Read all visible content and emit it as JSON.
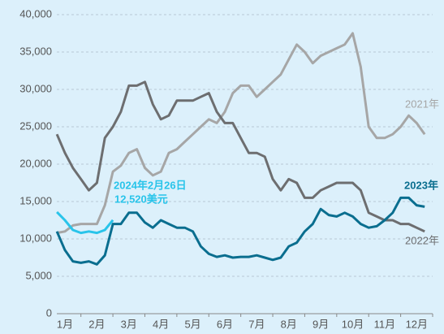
{
  "chart_data": {
    "type": "line",
    "categories": [
      "1月",
      "2月",
      "3月",
      "4月",
      "5月",
      "6月",
      "7月",
      "8月",
      "9月",
      "10月",
      "11月",
      "12月"
    ],
    "xlim": [
      0,
      12
    ],
    "x": [
      0.25,
      0.5,
      0.75,
      1,
      1.25,
      1.5,
      1.75,
      2,
      2.25,
      2.5,
      2.75,
      3,
      3.25,
      3.5,
      3.75,
      4,
      4.25,
      4.5,
      4.75,
      5,
      5.25,
      5.5,
      5.75,
      6,
      6.25,
      6.5,
      6.75,
      7,
      7.25,
      7.5,
      7.75,
      8,
      8.25,
      8.5,
      8.75,
      9,
      9.25,
      9.5,
      9.75,
      10,
      10.25,
      10.5,
      10.75,
      11,
      11.25,
      11.5,
      11.75
    ],
    "ylim": [
      0,
      40000
    ],
    "yticks": [
      0,
      {
        "value": 5000,
        "label": "5,000"
      },
      {
        "value": 10000,
        "label": "10,000"
      },
      {
        "value": 15000,
        "label": "15,000"
      },
      {
        "value": 20000,
        "label": "20,000"
      },
      {
        "value": 25000,
        "label": "25,000"
      },
      {
        "value": 30000,
        "label": "30,000"
      },
      {
        "value": 35000,
        "label": "35,000"
      },
      {
        "value": 40000,
        "label": "40,000"
      }
    ],
    "grid": true,
    "series": [
      {
        "name": "2021年",
        "color": "#a6a6a6",
        "values": [
          10800,
          11000,
          11800,
          12000,
          12000,
          12000,
          14500,
          19000,
          19800,
          21500,
          22000,
          19500,
          18500,
          19000,
          21500,
          22000,
          23000,
          24000,
          25000,
          26000,
          25500,
          27000,
          29500,
          30500,
          30500,
          29000,
          30000,
          31000,
          32000,
          34000,
          36000,
          35000,
          33500,
          34500,
          35000,
          35500,
          36000,
          37500,
          33000,
          25000,
          23500,
          23500,
          24000,
          25000,
          26500,
          25500,
          24000
        ]
      },
      {
        "name": "2022年",
        "color": "#6d6e70",
        "values": [
          24000,
          21500,
          19500,
          18000,
          16500,
          17500,
          23500,
          25000,
          27000,
          30500,
          30500,
          31000,
          28000,
          26000,
          26500,
          28500,
          28500,
          28500,
          29000,
          29500,
          27000,
          25500,
          25500,
          23500,
          21500,
          21500,
          21000,
          18000,
          16500,
          18000,
          17500,
          15500,
          15500,
          16500,
          17000,
          17500,
          17500,
          17500,
          16500,
          13500,
          13000,
          12500,
          12500,
          12000,
          12000,
          11500,
          11000
        ]
      },
      {
        "name": "2023年",
        "color": "#0a6e8f",
        "values": [
          11000,
          8500,
          7000,
          6800,
          7000,
          6600,
          7800,
          12000,
          12000,
          13500,
          13500,
          12200,
          11500,
          12500,
          12000,
          11500,
          11500,
          11000,
          9000,
          8000,
          7600,
          7800,
          7500,
          7600,
          7600,
          7800,
          7500,
          7200,
          7500,
          9000,
          9500,
          11000,
          12000,
          14000,
          13200,
          13000,
          13500,
          13000,
          12000,
          11500,
          11700,
          12500,
          13500,
          15500,
          15500,
          14500,
          14300
        ]
      },
      {
        "color": "#29c4ea",
        "values": [
          13600,
          12500,
          11200,
          10800,
          11000,
          10800,
          11200,
          12520,
          null,
          null,
          null,
          null,
          null,
          null,
          null,
          null,
          null,
          null,
          null,
          null,
          null,
          null,
          null,
          null,
          null,
          null,
          null,
          null,
          null,
          null,
          null,
          null,
          null,
          null,
          null,
          null,
          null,
          null,
          null,
          null,
          null,
          null,
          null,
          null,
          null,
          null,
          null
        ]
      }
    ],
    "annotations": [
      "2024年2月26日",
      "12,520美元"
    ]
  }
}
